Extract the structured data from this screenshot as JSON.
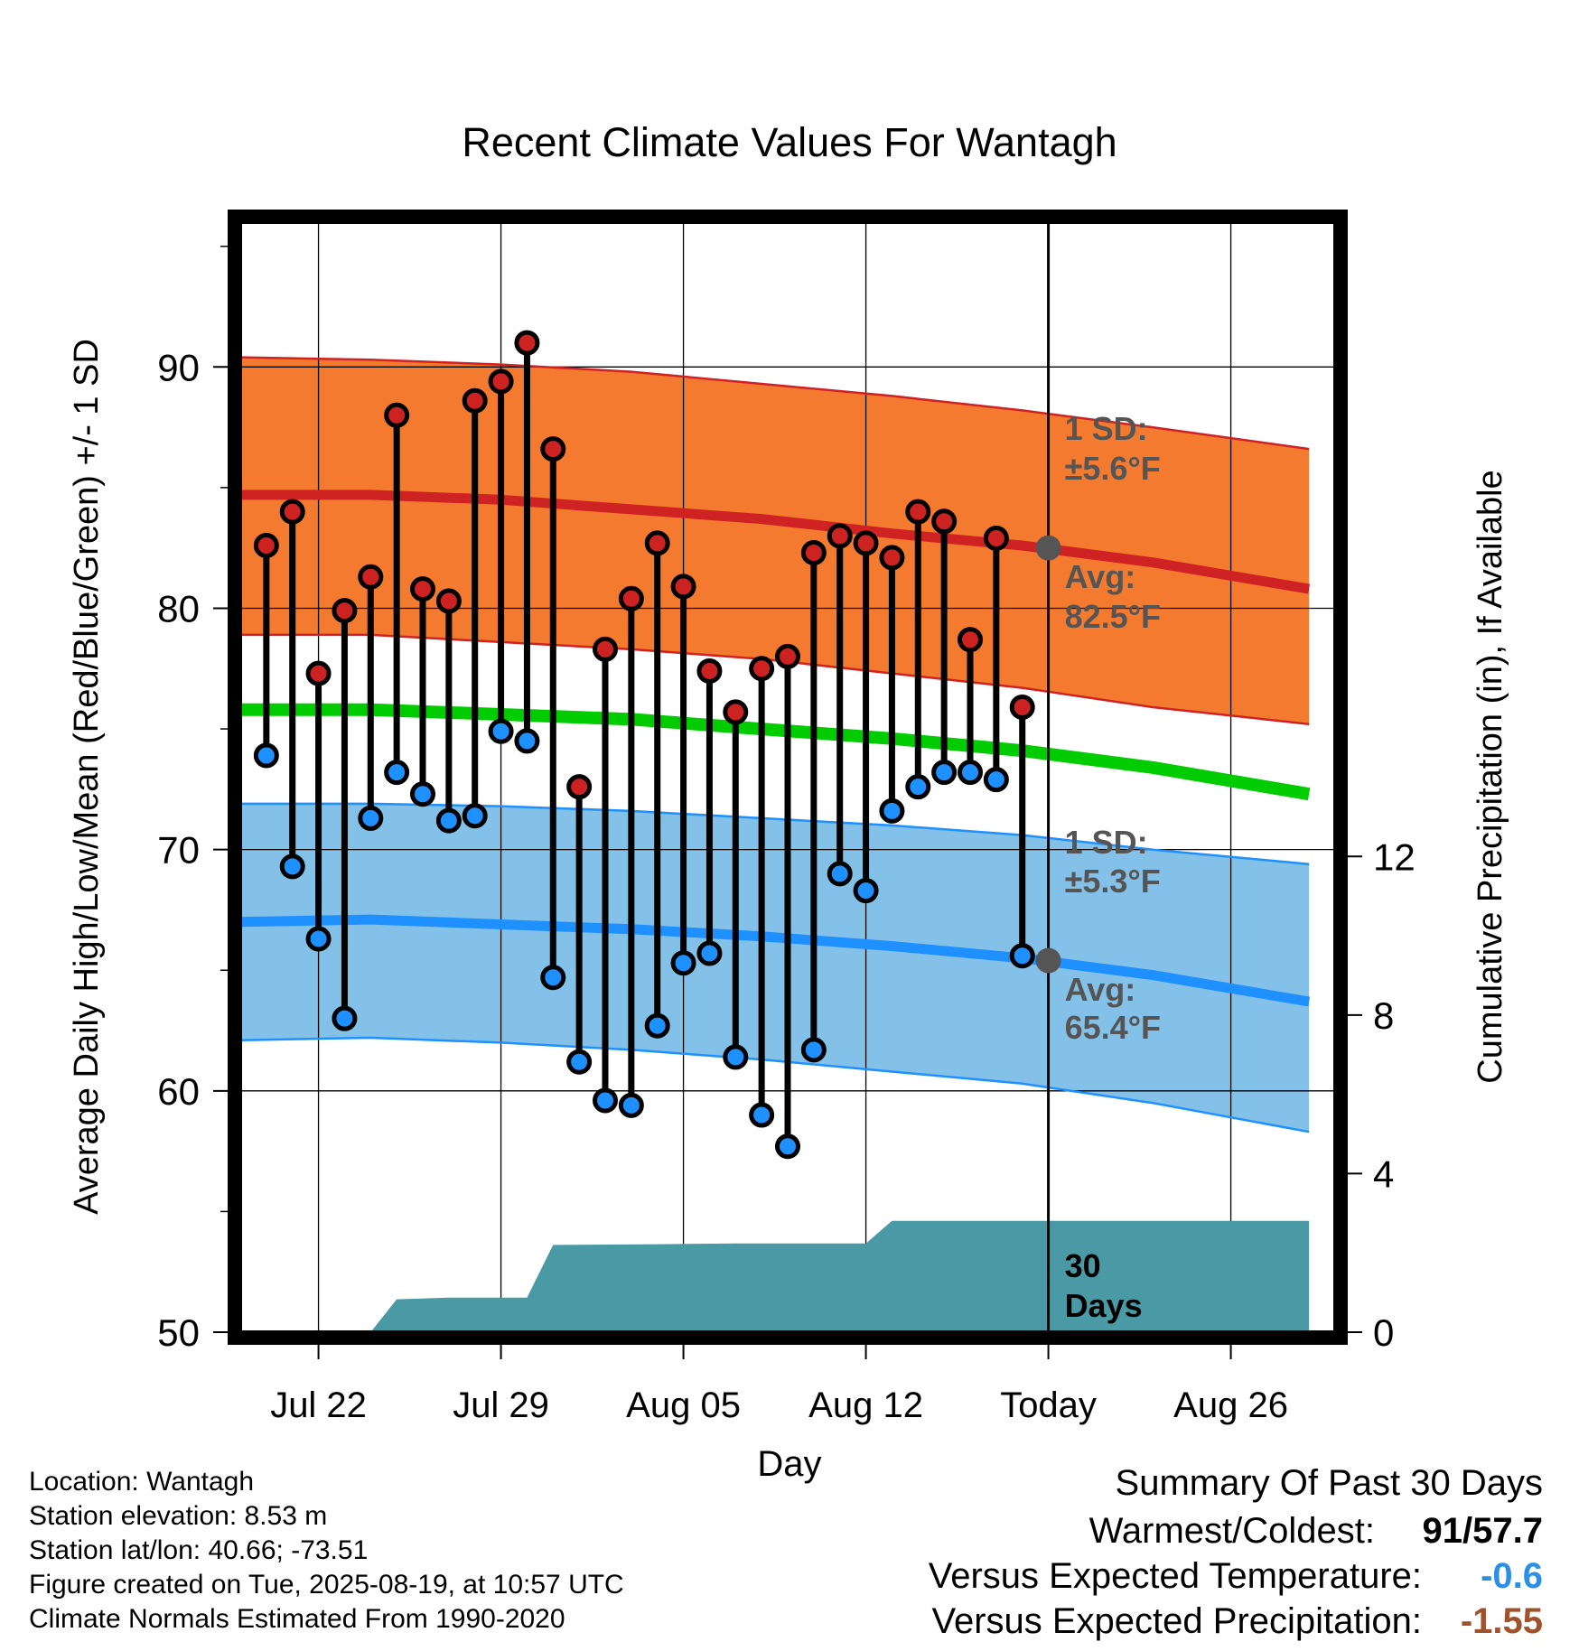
{
  "chart_data": {
    "type": "line",
    "title": "Recent Climate Values For Wantagh",
    "xlabel": "Day",
    "ylabel": "Average Daily High/Low/Mean (Red/Blue/Green) +/- 1 SD",
    "y2label": "Cumulative Precipitation (in), If Available",
    "ylim": [
      50,
      96
    ],
    "y2lim": [
      0,
      28
    ],
    "yticks": [
      50,
      60,
      70,
      80,
      90
    ],
    "y2ticks": [
      0,
      4,
      8,
      12
    ],
    "x_date_range": [
      "2025-07-19",
      "2025-08-30"
    ],
    "xticks": [
      {
        "date": "2025-07-22",
        "label": "Jul 22"
      },
      {
        "date": "2025-07-29",
        "label": "Jul 29"
      },
      {
        "date": "2025-08-05",
        "label": "Aug 05"
      },
      {
        "date": "2025-08-12",
        "label": "Aug 12"
      },
      {
        "date": "2025-08-19",
        "label": "Today"
      },
      {
        "date": "2025-08-26",
        "label": "Aug 26"
      }
    ],
    "grid": true,
    "today": "2025-08-19",
    "normals": {
      "dates": [
        "2025-07-19",
        "2025-07-24",
        "2025-07-29",
        "2025-08-03",
        "2025-08-08",
        "2025-08-13",
        "2025-08-18",
        "2025-08-23",
        "2025-08-29"
      ],
      "high_mean": [
        84.7,
        84.7,
        84.5,
        84.1,
        83.7,
        83.1,
        82.6,
        81.9,
        80.8
      ],
      "high_sd_upper": [
        90.4,
        90.3,
        90.1,
        89.8,
        89.3,
        88.8,
        88.2,
        87.5,
        86.6
      ],
      "high_sd_lower": [
        78.9,
        78.9,
        78.6,
        78.3,
        77.9,
        77.3,
        76.7,
        75.9,
        75.2
      ],
      "mean": [
        75.8,
        75.8,
        75.6,
        75.4,
        75.0,
        74.6,
        74.1,
        73.4,
        72.3
      ],
      "low_mean": [
        67.0,
        67.1,
        66.9,
        66.7,
        66.4,
        66.0,
        65.5,
        64.8,
        63.7
      ],
      "low_sd_upper": [
        71.9,
        71.9,
        71.8,
        71.6,
        71.3,
        71.0,
        70.6,
        70.0,
        69.4
      ],
      "low_sd_lower": [
        62.1,
        62.2,
        62.0,
        61.7,
        61.3,
        60.8,
        60.3,
        59.5,
        58.3
      ],
      "colors": {
        "high_band": "#f47a30",
        "high_line": "#cf2222",
        "mean_line": "#00cc00",
        "low_band": "#83c1e8",
        "low_line": "#1e90ff"
      }
    },
    "daily": {
      "dates": [
        "2025-07-20",
        "2025-07-21",
        "2025-07-22",
        "2025-07-23",
        "2025-07-24",
        "2025-07-25",
        "2025-07-26",
        "2025-07-27",
        "2025-07-28",
        "2025-07-29",
        "2025-07-30",
        "2025-07-31",
        "2025-08-01",
        "2025-08-02",
        "2025-08-03",
        "2025-08-04",
        "2025-08-05",
        "2025-08-06",
        "2025-08-07",
        "2025-08-08",
        "2025-08-09",
        "2025-08-10",
        "2025-08-11",
        "2025-08-12",
        "2025-08-13",
        "2025-08-14",
        "2025-08-15",
        "2025-08-16",
        "2025-08-17",
        "2025-08-18"
      ],
      "high": [
        82.6,
        84.0,
        77.3,
        79.9,
        81.3,
        88.0,
        80.8,
        80.3,
        88.6,
        89.4,
        91.0,
        86.6,
        72.6,
        78.3,
        80.4,
        82.7,
        80.9,
        77.4,
        75.7,
        77.5,
        78.0,
        82.3,
        83.0,
        82.7,
        82.1,
        84.0,
        83.6,
        78.7,
        82.9,
        75.9
      ],
      "low": [
        73.9,
        69.3,
        66.3,
        63.0,
        71.3,
        73.2,
        72.3,
        71.2,
        71.4,
        74.9,
        74.5,
        64.7,
        61.2,
        59.6,
        59.4,
        62.7,
        65.3,
        65.7,
        61.4,
        59.0,
        57.7,
        61.7,
        69.0,
        68.3,
        71.6,
        72.6,
        73.2,
        73.2,
        72.9,
        65.6
      ],
      "high_color": "#cc2222",
      "low_color": "#1e90ff"
    },
    "precipitation": {
      "dates": [
        "2025-07-19",
        "2025-07-23",
        "2025-07-24",
        "2025-07-25",
        "2025-07-27",
        "2025-07-30",
        "2025-07-31",
        "2025-08-04",
        "2025-08-07",
        "2025-08-11",
        "2025-08-12",
        "2025-08-13",
        "2025-08-19",
        "2025-08-29"
      ],
      "cumulative": [
        0,
        0,
        0.0,
        0.83,
        0.87,
        0.87,
        2.2,
        2.22,
        2.24,
        2.24,
        2.24,
        2.81,
        2.81,
        2.81
      ],
      "color": "#4a9aa5"
    },
    "annotations": {
      "high_sd_label": "1 SD:",
      "high_sd_value": "±5.6°F",
      "high_avg_label": "Avg:",
      "high_avg_value": "82.5°F",
      "low_sd_label": "1 SD:",
      "low_sd_value": "±5.3°F",
      "low_avg_label": "Avg:",
      "low_avg_value": "65.4°F",
      "today_high_avg": 82.5,
      "today_low_avg": 65.4,
      "days_count": "30",
      "days_word": "Days"
    }
  },
  "footer": {
    "location": "Location: Wantagh",
    "elevation": "Station elevation: 8.53 m",
    "latlon": "Station lat/lon: 40.66; -73.51",
    "created": "Figure created on Tue, 2025-08-19, at 10:57 UTC",
    "normals": "Climate Normals Estimated From 1990-2020"
  },
  "summary": {
    "title": "Summary Of Past 30 Days",
    "warm_cold_label": "Warmest/Coldest:",
    "warmest": "91",
    "coldest": "57.7",
    "temp_label": "Versus Expected Temperature:",
    "temp_value": "-0.6",
    "temp_color": "#2b8fe6",
    "precip_label": "Versus Expected Precipitation:",
    "precip_value": "-1.55",
    "precip_color": "#a0522d"
  }
}
